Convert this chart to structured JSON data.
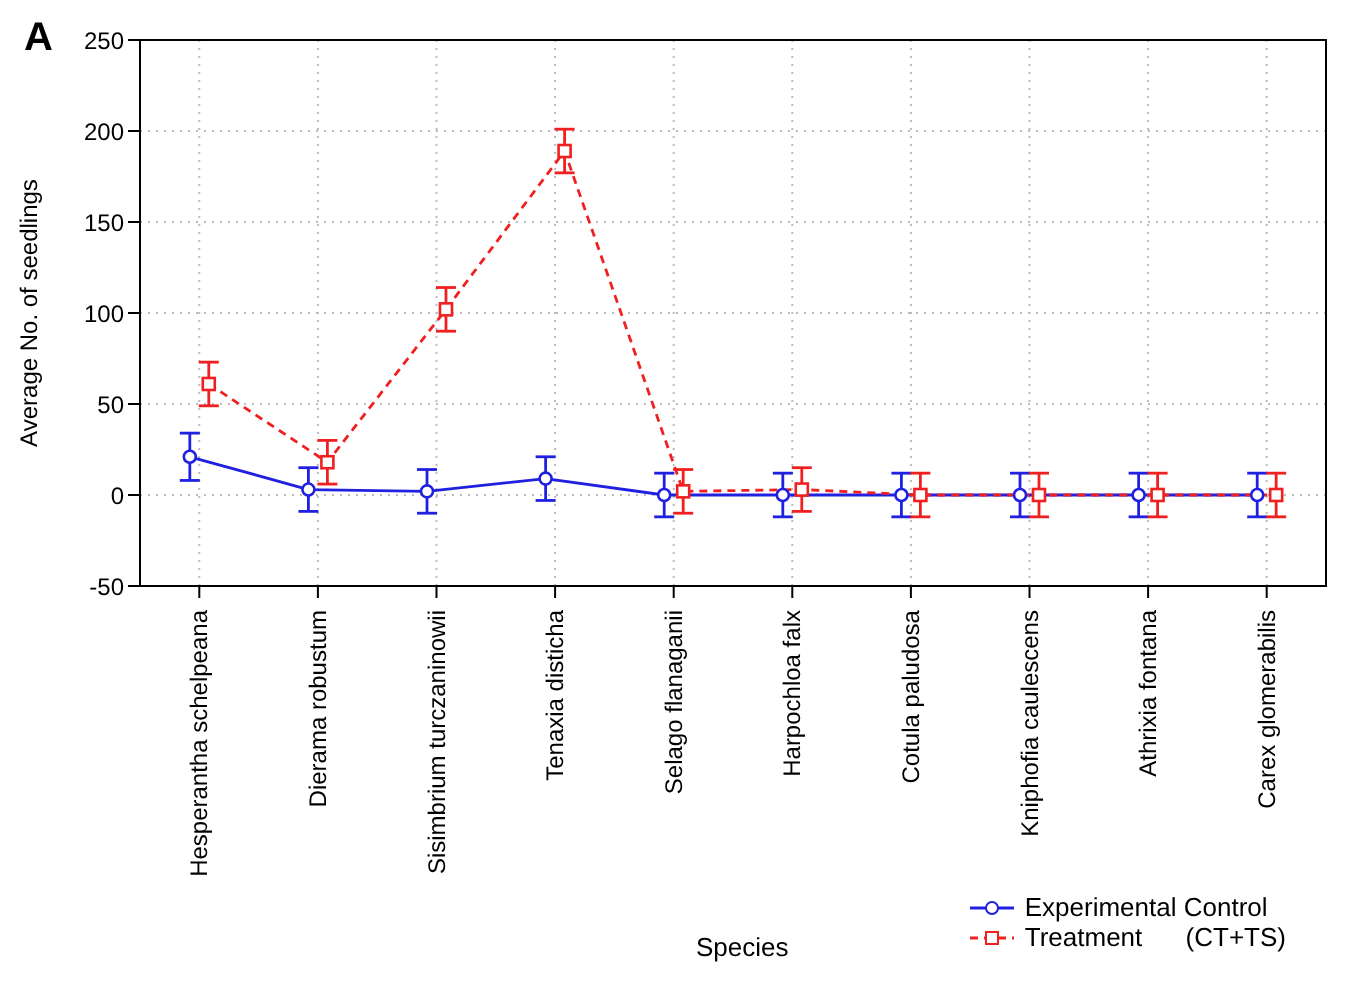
{
  "chart_data": {
    "type": "line",
    "annotations": [
      "A"
    ],
    "xlabel": "Species",
    "ylabel": "Average No. of seedlings",
    "categories": [
      "Hesperantha schelpeana",
      "Dierama robustum",
      "Sisimbrium turczaninowii",
      "Tenaxia disticha",
      "Selago flanaganii",
      "Harpochloa falx",
      "Cotula paludosa",
      "Kniphofia caulescens",
      "Athrixia fontana",
      "Carex glomerabilis"
    ],
    "series": [
      {
        "name": "Experimental Control",
        "color": "#2020e0",
        "marker": "circle",
        "line_style": "solid",
        "values": [
          21,
          3,
          2,
          9,
          0,
          0,
          0,
          0,
          0,
          0
        ],
        "errors": [
          13,
          12,
          12,
          12,
          12,
          12,
          12,
          12,
          12,
          12
        ]
      },
      {
        "name": "Treatment      (CT+TS)",
        "color": "#f02020",
        "marker": "square",
        "line_style": "dashed",
        "values": [
          61,
          18,
          102,
          189,
          2,
          3,
          0,
          0,
          0,
          0
        ],
        "errors": [
          12,
          12,
          12,
          12,
          12,
          12,
          12,
          12,
          12,
          12
        ]
      }
    ],
    "ylim": [
      -50,
      250
    ],
    "yticks": [
      -50,
      0,
      50,
      100,
      150,
      200,
      250
    ],
    "grid": true,
    "legend": "bottom right"
  }
}
